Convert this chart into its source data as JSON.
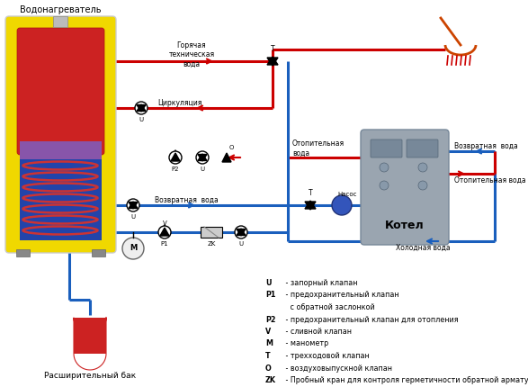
{
  "bg_color": "#ffffff",
  "legend_items": [
    [
      "U",
      " - запорный клапан"
    ],
    [
      "P1",
      " - предохранительный клапан"
    ],
    [
      "",
      "   с обратной заслонкой"
    ],
    [
      "P2",
      " - предохранительный клапан для отопления"
    ],
    [
      "V",
      " - сливной клапан"
    ],
    [
      "M",
      " - манометр"
    ],
    [
      "T",
      " - трехходовой клапан"
    ],
    [
      "O",
      " - воздуховыпускной клапан"
    ],
    [
      "ZK",
      " - Пробный кран для контроля герметичности обратной арматуры"
    ]
  ],
  "label_water_heater": "Водонагреватель",
  "label_expansion_tank": "Расширительный бак",
  "label_boiler": "Котел",
  "label_circ": "Циркуляция",
  "label_hot_water": "Горячая\nтехническая\nвода",
  "label_return_water1": "Возвратная  вода",
  "label_heating_water_label": "Отопительная\nвода",
  "label_heating_water2": "Отопительная вода",
  "label_return_water2": "Возвратная  вода",
  "label_cold_water": "Холодная вода",
  "label_pump": "Насос",
  "red": "#cc0000",
  "blue": "#1a5fbd",
  "yellow": "#f0d800",
  "boiler_gray": "#9aa5b0"
}
